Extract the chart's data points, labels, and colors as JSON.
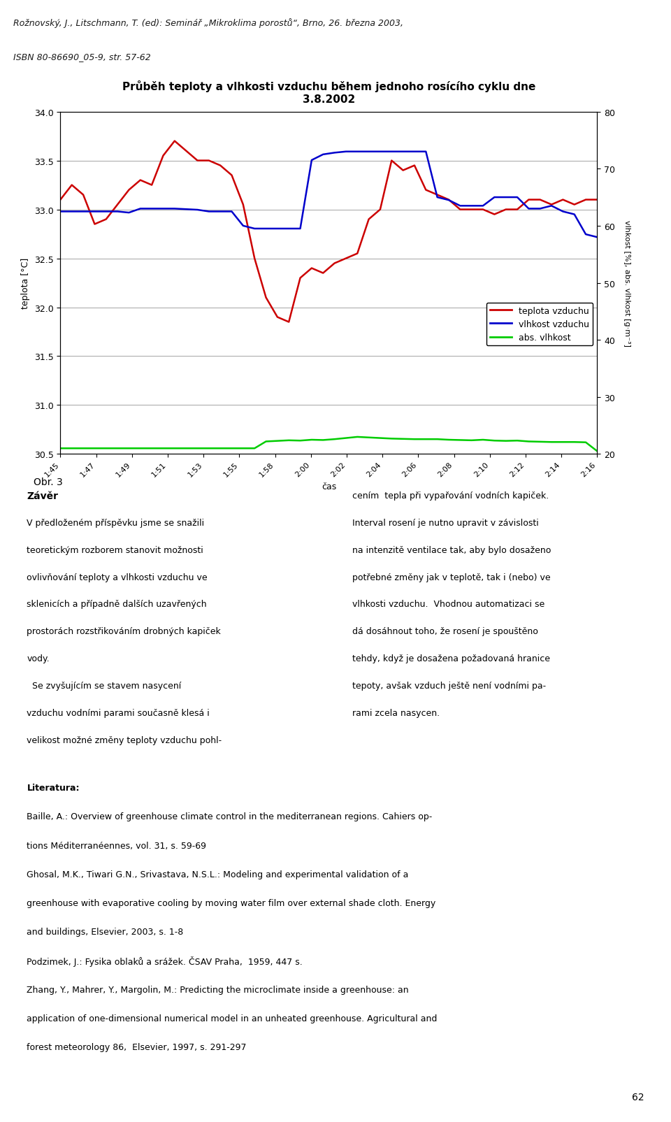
{
  "title_line1": "Průběh teploty a vlhkosti vzduchu během jednoho rosícího cyklu dne",
  "title_line2": "3.8.2002",
  "xlabel": "čas",
  "ylabel_left": "teplota [°C]",
  "ylabel_right": "vlhkost [%], abs. vlhkost [g·m⁻³]",
  "header_text_line1": "Rožnovský, J., Litschmann, T. (ed): Seminář „Mikroklima porostů“, Brno, 26. března 2003,",
  "header_text_line2": "ISBN 80-86690_05-9, str. 57-62",
  "header_bg": "#00bcd4",
  "ylim_left": [
    30.5,
    34.0
  ],
  "ylim_right": [
    20,
    80
  ],
  "yticks_left": [
    30.5,
    31.0,
    31.5,
    32.0,
    32.5,
    33.0,
    33.5,
    34.0
  ],
  "yticks_right": [
    20,
    30,
    40,
    50,
    60,
    70,
    80
  ],
  "xtick_labels": [
    "1:45",
    "1:47",
    "1:49",
    "1:51",
    "1:53",
    "1:55",
    "1:58",
    "2:00",
    "2:02",
    "2:04",
    "2:06",
    "2:08",
    "2:10",
    "2:12",
    "2:14",
    "2:16"
  ],
  "color_teplota": "#cc0000",
  "color_vlhkost": "#0000cc",
  "color_abs_vlhkost": "#00cc00",
  "legend_teplota": "teplota vzduchu",
  "legend_vlhkost": "vlhkost vzduchu",
  "legend_abs": "abs. vlhkost",
  "teplota": [
    33.1,
    33.25,
    33.15,
    32.85,
    32.9,
    33.05,
    33.2,
    33.3,
    33.25,
    33.55,
    33.7,
    33.6,
    33.5,
    33.5,
    33.45,
    33.35,
    33.05,
    32.5,
    32.1,
    31.9,
    31.85,
    32.3,
    32.4,
    32.35,
    32.45,
    32.5,
    32.55,
    32.9,
    33.0,
    33.5,
    33.4,
    33.45,
    33.2,
    33.15,
    33.1,
    33.0,
    33.0,
    33.0,
    32.95,
    33.0,
    33.0,
    33.1,
    33.1,
    33.05,
    33.1,
    33.05,
    33.1,
    33.1
  ],
  "vlhkost": [
    62.5,
    62.5,
    62.5,
    62.5,
    62.5,
    62.5,
    62.3,
    63.0,
    63.0,
    63.0,
    63.0,
    62.9,
    62.8,
    62.5,
    62.5,
    62.5,
    60.0,
    59.5,
    59.5,
    59.5,
    59.5,
    59.5,
    71.5,
    72.5,
    72.8,
    73.0,
    73.0,
    73.0,
    73.0,
    73.0,
    73.0,
    73.0,
    73.0,
    65.0,
    64.5,
    63.5,
    63.5,
    63.5,
    65.0,
    65.0,
    65.0,
    63.0,
    63.0,
    63.5,
    62.5,
    62.0,
    58.5,
    58.0
  ],
  "abs_vlhkost": [
    21.0,
    21.0,
    21.0,
    21.0,
    21.0,
    21.0,
    21.0,
    21.0,
    21.0,
    21.0,
    21.0,
    21.0,
    21.0,
    21.0,
    21.0,
    21.0,
    21.0,
    21.0,
    22.2,
    22.3,
    22.4,
    22.35,
    22.5,
    22.45,
    22.6,
    22.8,
    23.0,
    22.9,
    22.8,
    22.7,
    22.65,
    22.6,
    22.6,
    22.6,
    22.5,
    22.45,
    22.4,
    22.5,
    22.35,
    22.3,
    22.35,
    22.2,
    22.15,
    22.1,
    22.1,
    22.1,
    22.05,
    20.5
  ],
  "footer_text": [
    "Literatura:",
    "Baille, A.: Overview of greenhouse climate control in the mediterranean regions. Cahiers op-",
    "tions Méditerranéennes, vol. 31, s. 59-69",
    "Ghosal, M.K., Tiwari G.N., Srivastava, N.S.L.: Modeling and experimental validation of a",
    "greenhouse with evaporative cooling by moving water film over external shade cloth. Energy",
    "and buildings, Elsevier, 2003, s. 1-8",
    "Podzimek, J.: Fysika oblaků a srážek. ČSAV Praha,  1959, 447 s.",
    "Zhang, Y., Mahrer, Y., Margolin, M.: Predicting the microclimate inside a greenhouse: an",
    "application of one-dimensional numerical model in an unheated greenhouse. Agricultural and",
    "forest meteorology 86,  Elsevier, 1997, s. 291-297"
  ],
  "body_text_left": [
    "Závěr",
    "V předloženém příspěvku jsme se snažili",
    "teoretickým rozborem stanovit možnosti",
    "ovlivňování teploty a vlhkosti vzduchu ve",
    "sklenicích a případně dalších uzavřených",
    "prostorách rozstřikováním drobných kapiček",
    "vody.",
    "  Se zvyšujícím se stavem nasycení",
    "vzduchu vodními parami současně klesá i",
    "velikost možné změny teploty vzduchu pohl-"
  ],
  "body_text_right": [
    "cením  tepla při vypařování vodních kapiček.",
    "Interval rosení je nutno upravit v závislosti",
    "na intenzitě ventilace tak, aby bylo dosaženo",
    "potřebné změny jak v teplotě, tak i (nebo) ve",
    "vlhkosti vzduchu.  Vhodnou automatizaci se",
    "dá dosáhnout toho, že rosení je spouštěno",
    "tehdy, když je dosažena požadovaná hranice",
    "tepoty, avšak vzduch ještě není vodními pa-",
    "rami zcela nasycen."
  ],
  "obr_text": "Obr. 3",
  "page_number": "62",
  "background_color": "#ffffff"
}
